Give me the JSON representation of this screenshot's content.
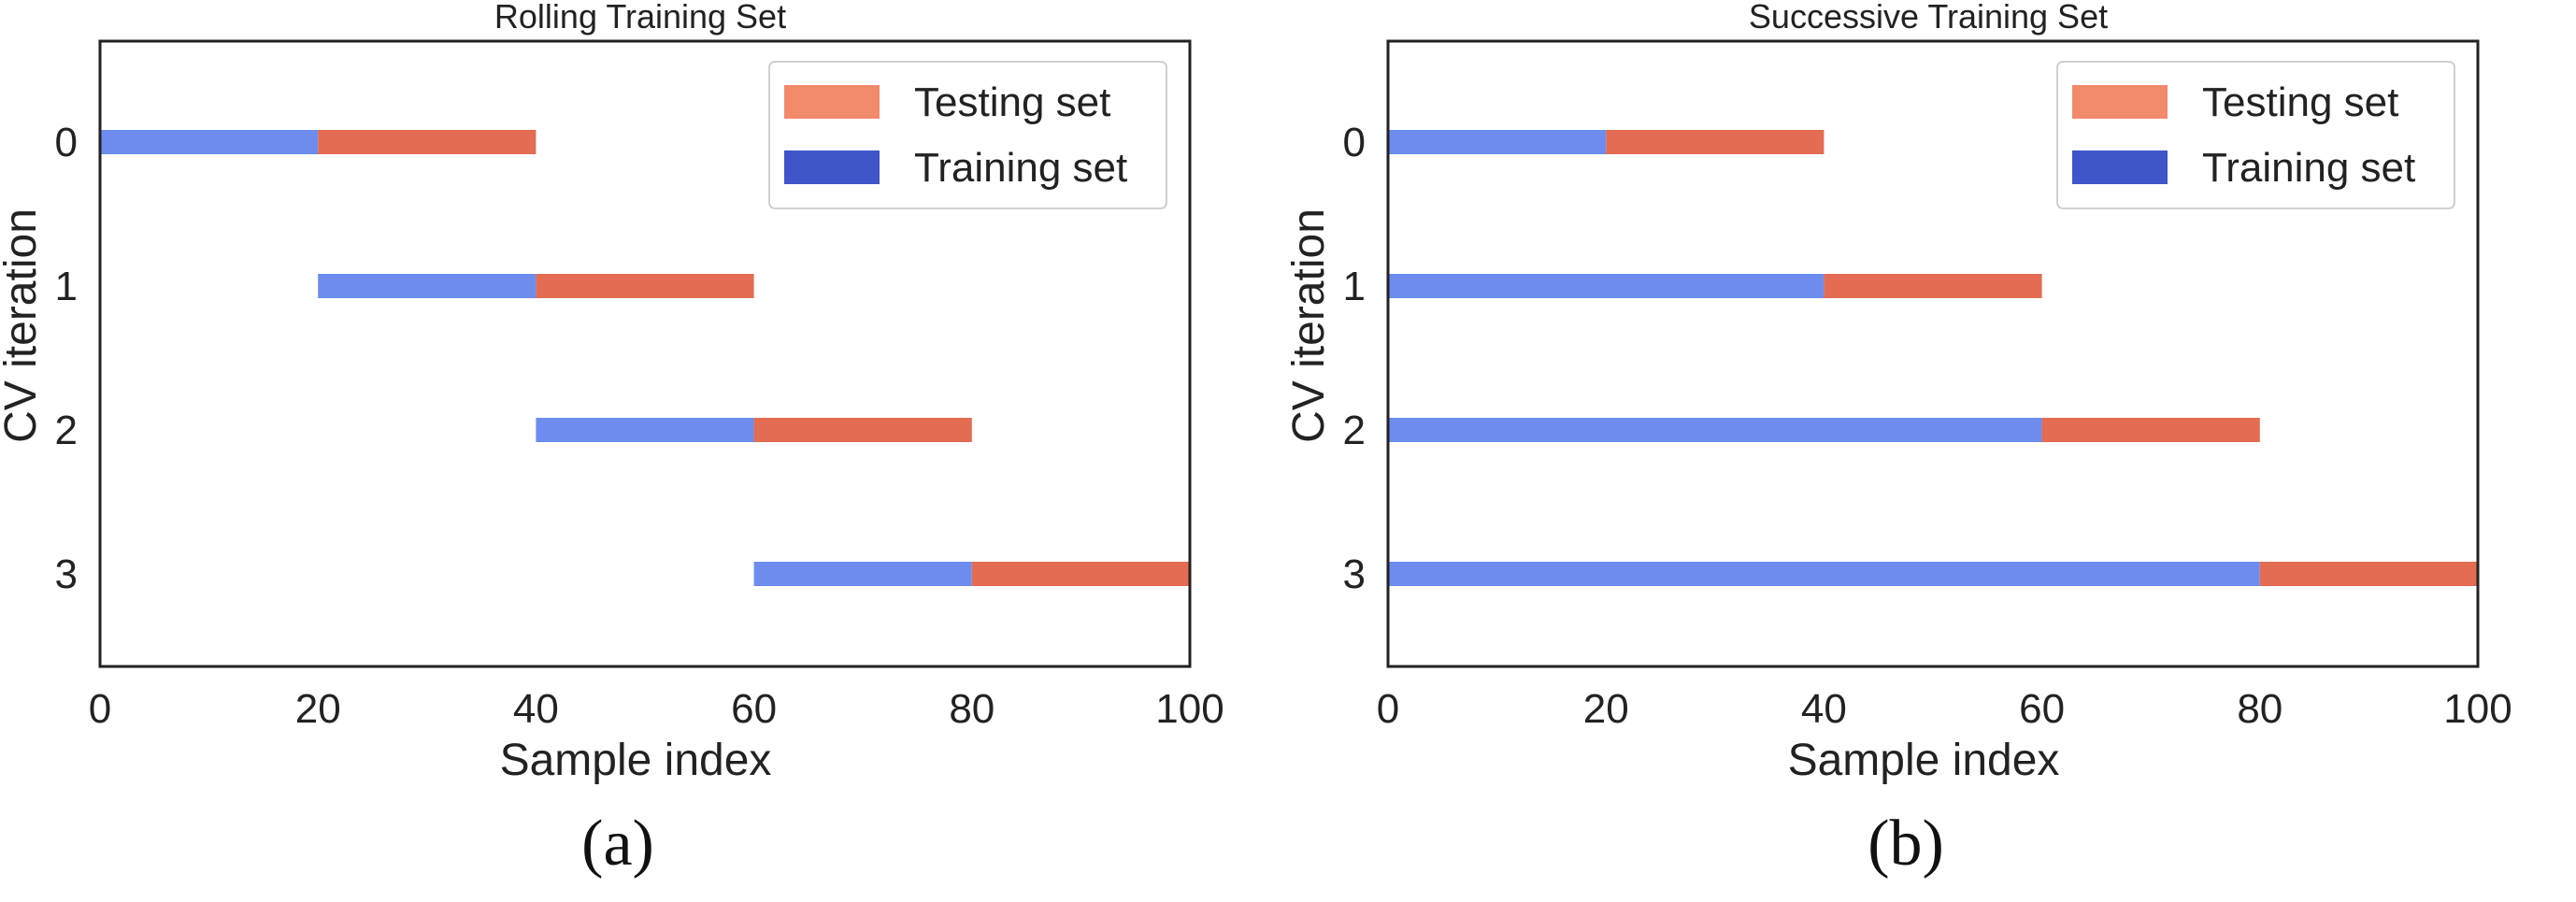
{
  "chart_data": [
    {
      "type": "bar",
      "title": "Rolling Training Set",
      "xlabel": "Sample index",
      "ylabel": "CV iteration",
      "xlim": [
        0,
        100
      ],
      "xticks": [
        "0",
        "20",
        "40",
        "60",
        "80",
        "100"
      ],
      "categories": [
        "0",
        "1",
        "2",
        "3"
      ],
      "orientation": "horizontal",
      "series": [
        {
          "name": "Training set",
          "color": "#6d8ced",
          "ranges": [
            [
              0,
              20
            ],
            [
              20,
              40
            ],
            [
              40,
              60
            ],
            [
              60,
              80
            ]
          ]
        },
        {
          "name": "Testing set",
          "color": "#e36c53",
          "ranges": [
            [
              20,
              40
            ],
            [
              40,
              60
            ],
            [
              60,
              80
            ],
            [
              80,
              100
            ]
          ]
        }
      ],
      "legend": [
        {
          "label": "Testing set",
          "color": "#f08a6b"
        },
        {
          "label": "Training set",
          "color": "#3f55c8"
        }
      ],
      "legend_position": "top-right",
      "grid": false,
      "caption": "(a)"
    },
    {
      "type": "bar",
      "title": "Successive Training Set",
      "xlabel": "Sample index",
      "ylabel": "CV iteration",
      "xlim": [
        0,
        100
      ],
      "xticks": [
        "0",
        "20",
        "40",
        "60",
        "80",
        "100"
      ],
      "categories": [
        "0",
        "1",
        "2",
        "3"
      ],
      "orientation": "horizontal",
      "series": [
        {
          "name": "Training set",
          "color": "#6d8ced",
          "ranges": [
            [
              0,
              20
            ],
            [
              0,
              40
            ],
            [
              0,
              60
            ],
            [
              0,
              80
            ]
          ]
        },
        {
          "name": "Testing set",
          "color": "#e36c53",
          "ranges": [
            [
              20,
              40
            ],
            [
              40,
              60
            ],
            [
              60,
              80
            ],
            [
              80,
              100
            ]
          ]
        }
      ],
      "legend": [
        {
          "label": "Testing set",
          "color": "#f08a6b"
        },
        {
          "label": "Training set",
          "color": "#3f55c8"
        }
      ],
      "legend_position": "top-right",
      "grid": false,
      "caption": "(b)"
    }
  ]
}
